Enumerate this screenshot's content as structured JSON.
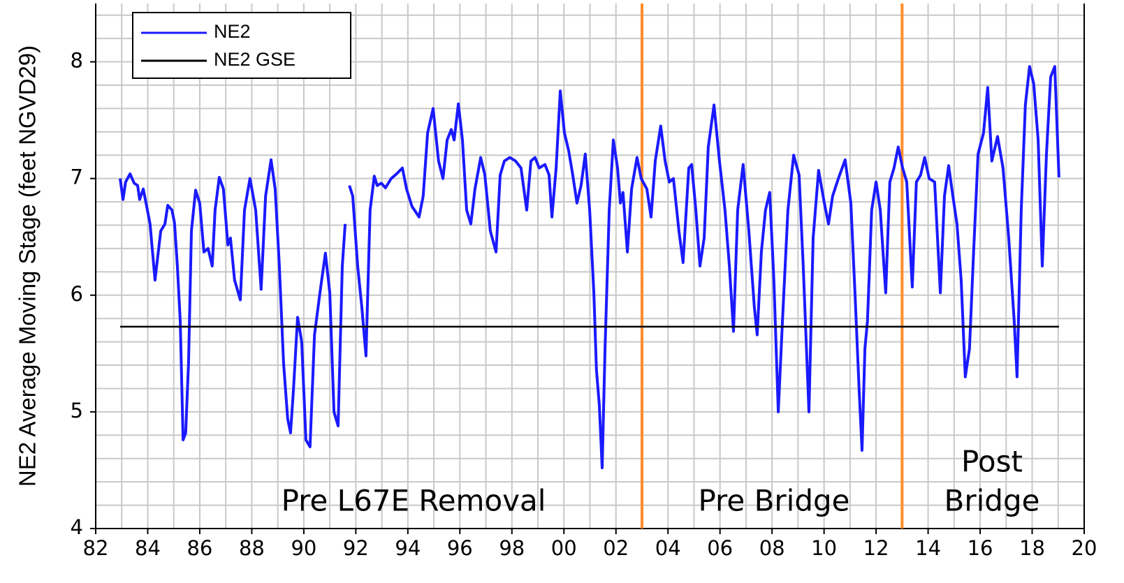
{
  "chart_data": {
    "type": "line",
    "y_label": "NE2 Average Moving Stage (feet NGVD29)",
    "xlim": [
      1982,
      2020
    ],
    "ylim": [
      4,
      8.5
    ],
    "xticks": [
      {
        "value": 1982,
        "label": "82"
      },
      {
        "value": 1984,
        "label": "84"
      },
      {
        "value": 1986,
        "label": "86"
      },
      {
        "value": 1988,
        "label": "88"
      },
      {
        "value": 1990,
        "label": "90"
      },
      {
        "value": 1992,
        "label": "92"
      },
      {
        "value": 1994,
        "label": "94"
      },
      {
        "value": 1996,
        "label": "96"
      },
      {
        "value": 1998,
        "label": "98"
      },
      {
        "value": 2000,
        "label": "00"
      },
      {
        "value": 2002,
        "label": "02"
      },
      {
        "value": 2004,
        "label": "04"
      },
      {
        "value": 2006,
        "label": "06"
      },
      {
        "value": 2008,
        "label": "08"
      },
      {
        "value": 2010,
        "label": "10"
      },
      {
        "value": 2012,
        "label": "12"
      },
      {
        "value": 2014,
        "label": "14"
      },
      {
        "value": 2016,
        "label": "16"
      },
      {
        "value": 2018,
        "label": "18"
      },
      {
        "value": 2020,
        "label": "20"
      }
    ],
    "yticks": [
      4,
      5,
      6,
      7,
      8
    ],
    "x_minor_grid": [
      1983,
      1985,
      1987,
      1989,
      1991,
      1993,
      1995,
      1997,
      1999,
      2001,
      2003,
      2005,
      2007,
      2009,
      2011,
      2013,
      2015,
      2017,
      2019
    ],
    "y_minor_grid": [
      4.2,
      4.4,
      4.6,
      4.8,
      5.2,
      5.4,
      5.6,
      5.8,
      6.2,
      6.4,
      6.6,
      6.8,
      7.2,
      7.4,
      7.6,
      7.8,
      8.2,
      8.4
    ],
    "grid": true,
    "grid_color": "#c8c8c8",
    "legend_position": "upper left",
    "vlines": [
      {
        "x": 2003,
        "color": "#ff8c2a"
      },
      {
        "x": 2013,
        "color": "#ff8c2a"
      }
    ],
    "annotations": [
      [
        "Pre L67E Removal"
      ],
      [
        "Pre Bridge"
      ],
      [
        "Post",
        "Bridge"
      ]
    ],
    "series": [
      {
        "name": "NE2",
        "color": "#1a1aff",
        "x": [
          1982.94,
          1983.05,
          1983.15,
          1983.32,
          1983.48,
          1983.61,
          1983.69,
          1983.83,
          1983.96,
          1984.09,
          1984.28,
          1984.5,
          1984.66,
          1984.77,
          1984.93,
          1985.03,
          1985.14,
          1985.25,
          1985.36,
          1985.46,
          1985.57,
          1985.68,
          1985.84,
          1986.0,
          1986.16,
          1986.32,
          1986.48,
          1986.59,
          1986.75,
          1986.91,
          1987.08,
          1987.18,
          1987.34,
          1987.56,
          1987.72,
          1987.93,
          1988.15,
          1988.36,
          1988.53,
          1988.74,
          1988.9,
          1989.06,
          1989.22,
          1989.38,
          1989.49,
          1989.6,
          1989.76,
          1989.92,
          1990.08,
          1990.24,
          1990.41,
          1990.62,
          1990.83,
          1991.0,
          1991.16,
          1991.32,
          1991.48,
          1991.59,
          1991.65,
          1991.75,
          1991.88,
          1992.07,
          1992.23,
          1992.39,
          1992.55,
          1992.71,
          1992.82,
          1992.98,
          1993.14,
          1993.36,
          1993.57,
          1993.79,
          1993.95,
          1994.16,
          1994.43,
          1994.59,
          1994.76,
          1994.97,
          1995.18,
          1995.35,
          1995.51,
          1995.67,
          1995.78,
          1995.94,
          1996.1,
          1996.26,
          1996.42,
          1996.58,
          1996.8,
          1996.96,
          1997.17,
          1997.39,
          1997.55,
          1997.71,
          1997.92,
          1998.14,
          1998.35,
          1998.57,
          1998.73,
          1998.89,
          1999.05,
          1999.27,
          1999.43,
          1999.54,
          1999.7,
          1999.86,
          2000.02,
          2000.18,
          2000.34,
          2000.5,
          2000.66,
          2000.82,
          2000.99,
          2001.15,
          2001.25,
          2001.36,
          2001.47,
          2001.58,
          2001.74,
          2001.9,
          2002.06,
          2002.17,
          2002.27,
          2002.44,
          2002.6,
          2002.81,
          2002.97,
          2003.19,
          2003.35,
          2003.51,
          2003.72,
          2003.89,
          2004.05,
          2004.21,
          2004.42,
          2004.58,
          2004.8,
          2004.91,
          2005.07,
          2005.23,
          2005.39,
          2005.55,
          2005.77,
          2005.98,
          2006.19,
          2006.36,
          2006.52,
          2006.68,
          2006.89,
          2007.11,
          2007.32,
          2007.43,
          2007.59,
          2007.75,
          2007.91,
          2008.07,
          2008.24,
          2008.4,
          2008.61,
          2008.83,
          2009.04,
          2009.2,
          2009.42,
          2009.58,
          2009.79,
          2010.01,
          2010.17,
          2010.33,
          2010.55,
          2010.81,
          2011.03,
          2011.19,
          2011.35,
          2011.46,
          2011.57,
          2011.67,
          2011.83,
          2012.0,
          2012.16,
          2012.37,
          2012.53,
          2012.69,
          2012.85,
          2013.02,
          2013.18,
          2013.39,
          2013.55,
          2013.71,
          2013.87,
          2014.04,
          2014.25,
          2014.47,
          2014.63,
          2014.79,
          2014.95,
          2015.11,
          2015.27,
          2015.43,
          2015.59,
          2015.75,
          2015.92,
          2016.13,
          2016.29,
          2016.45,
          2016.67,
          2016.88,
          2017.1,
          2017.31,
          2017.42,
          2017.58,
          2017.74,
          2017.9,
          2018.06,
          2018.23,
          2018.39,
          2018.55,
          2018.71,
          2018.87,
          2019.03
        ],
        "values": [
          7.0,
          6.82,
          6.97,
          7.04,
          6.96,
          6.94,
          6.82,
          6.91,
          6.76,
          6.61,
          6.13,
          6.55,
          6.61,
          6.77,
          6.73,
          6.62,
          6.25,
          5.78,
          4.76,
          4.82,
          5.42,
          6.55,
          6.9,
          6.79,
          6.37,
          6.4,
          6.25,
          6.73,
          7.01,
          6.91,
          6.43,
          6.49,
          6.13,
          5.96,
          6.73,
          7.0,
          6.73,
          6.05,
          6.85,
          7.16,
          6.91,
          6.25,
          5.42,
          4.94,
          4.82,
          5.18,
          5.81,
          5.6,
          4.76,
          4.7,
          5.66,
          6.02,
          6.36,
          6.02,
          5.0,
          4.88,
          6.25,
          6.61,
          null,
          6.94,
          6.85,
          6.25,
          5.9,
          5.48,
          6.73,
          7.02,
          6.94,
          6.96,
          6.92,
          7.0,
          7.04,
          7.09,
          6.91,
          6.76,
          6.67,
          6.85,
          7.39,
          7.6,
          7.15,
          7.0,
          7.33,
          7.42,
          7.33,
          7.64,
          7.33,
          6.73,
          6.61,
          6.91,
          7.18,
          7.03,
          6.55,
          6.37,
          7.03,
          7.15,
          7.18,
          7.15,
          7.09,
          6.73,
          7.15,
          7.18,
          7.09,
          7.12,
          7.03,
          6.67,
          7.09,
          7.75,
          7.39,
          7.24,
          7.03,
          6.79,
          6.94,
          7.21,
          6.73,
          6.02,
          5.36,
          5.06,
          4.52,
          5.54,
          6.73,
          7.33,
          7.09,
          6.79,
          6.88,
          6.37,
          6.91,
          7.18,
          7.0,
          6.91,
          6.67,
          7.15,
          7.45,
          7.15,
          6.97,
          7.0,
          6.55,
          6.28,
          7.09,
          7.12,
          6.73,
          6.25,
          6.49,
          7.27,
          7.63,
          7.15,
          6.73,
          6.25,
          5.69,
          6.73,
          7.12,
          6.55,
          5.9,
          5.66,
          6.37,
          6.73,
          6.88,
          6.13,
          5.0,
          5.78,
          6.73,
          7.2,
          7.03,
          6.25,
          5.0,
          6.49,
          7.07,
          6.79,
          6.61,
          6.85,
          7.0,
          7.16,
          6.79,
          6.02,
          5.18,
          4.67,
          5.54,
          5.78,
          6.73,
          6.97,
          6.73,
          6.02,
          6.97,
          7.09,
          7.27,
          7.09,
          6.97,
          6.07,
          6.97,
          7.03,
          7.18,
          7.0,
          6.97,
          6.02,
          6.85,
          7.11,
          6.85,
          6.61,
          6.13,
          5.3,
          5.54,
          6.37,
          7.21,
          7.39,
          7.78,
          7.15,
          7.36,
          7.09,
          6.49,
          5.78,
          5.3,
          6.73,
          7.63,
          7.96,
          7.81,
          7.33,
          6.25,
          7.21,
          7.87,
          7.96,
          7.01
        ]
      },
      {
        "name": "NE2 GSE",
        "color": "#000000",
        "x": [
          1982.94,
          2019.03
        ],
        "values": [
          5.73,
          5.73
        ]
      }
    ]
  }
}
